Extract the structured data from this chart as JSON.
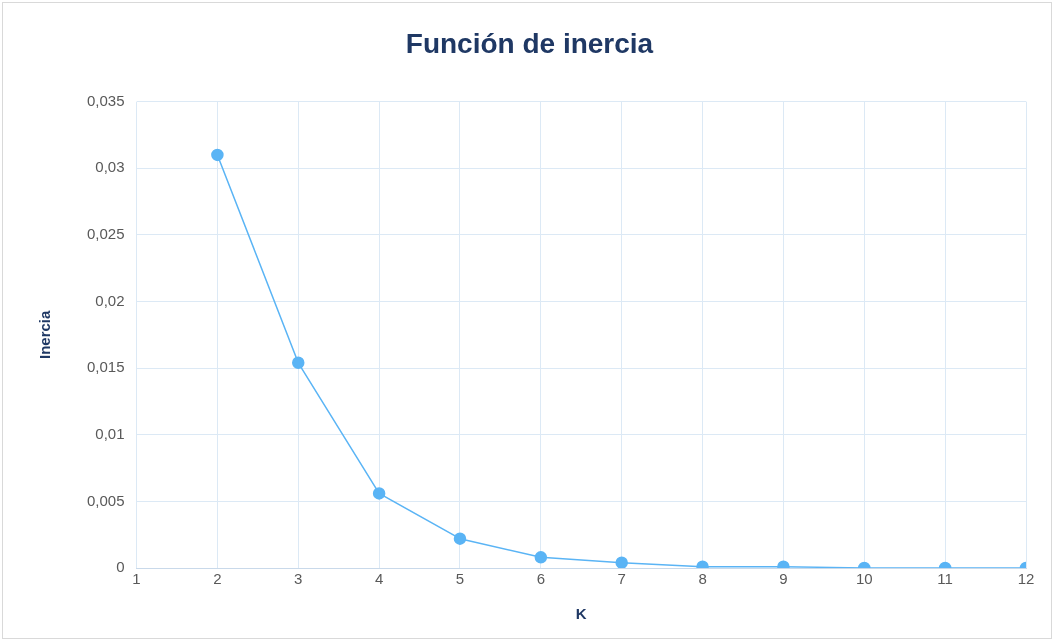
{
  "chart_data": {
    "type": "line",
    "title": "Función de inercia",
    "xlabel": "K",
    "ylabel": "Inercia",
    "x": [
      2,
      3,
      4,
      5,
      6,
      7,
      8,
      9,
      10,
      11,
      12
    ],
    "series": [
      {
        "color": "#5ab4f5",
        "values": [
          0.031,
          0.0154,
          0.0056,
          0.0022,
          0.0008,
          0.0004,
          0.0001,
          0.0001,
          0,
          0,
          0
        ]
      }
    ],
    "xlim": [
      1,
      12
    ],
    "xticks": [
      1,
      2,
      3,
      4,
      5,
      6,
      7,
      8,
      9,
      10,
      11,
      12
    ],
    "ylim": [
      0,
      0.035
    ],
    "yticks": [
      {
        "value": 0,
        "label": "0"
      },
      {
        "value": 0.005,
        "label": "0,005"
      },
      {
        "value": 0.01,
        "label": "0,01"
      },
      {
        "value": 0.015,
        "label": "0,015"
      },
      {
        "value": 0.02,
        "label": "0,02"
      },
      {
        "value": 0.025,
        "label": "0,025"
      },
      {
        "value": 0.03,
        "label": "0,03"
      },
      {
        "value": 0.035,
        "label": "0,035"
      }
    ],
    "grid": true,
    "legend": false,
    "marker": "circle",
    "line_style": "solid"
  }
}
